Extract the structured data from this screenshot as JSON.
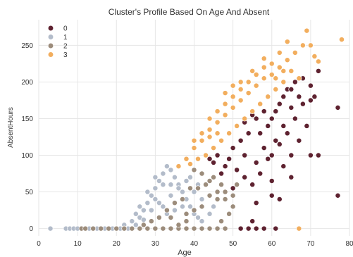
{
  "chart_data": {
    "type": "scatter",
    "title": "Cluster's Profile Based On Age And Absent",
    "xlabel": "Age",
    "ylabel": "AbsentHours",
    "xlim": [
      0,
      80
    ],
    "ylim": [
      -10,
      285
    ],
    "x_ticks": [
      "0",
      "10",
      "20",
      "30",
      "40",
      "50",
      "60",
      "70",
      "80"
    ],
    "y_ticks": [
      "0",
      "50",
      "100",
      "150",
      "200",
      "250"
    ],
    "grid": true,
    "legend": {
      "position": "top-left",
      "entries": [
        {
          "label": "0",
          "color": "#5e2230"
        },
        {
          "label": "1",
          "color": "#b3bcca"
        },
        {
          "label": "2",
          "color": "#9c8c7b"
        },
        {
          "label": "3",
          "color": "#f2ae5e"
        }
      ]
    },
    "series": [
      {
        "name": "0",
        "color": "#5e2230",
        "points": [
          [
            44,
            95
          ],
          [
            46,
            100
          ],
          [
            48,
            85
          ],
          [
            50,
            110
          ],
          [
            52,
            120
          ],
          [
            54,
            130
          ],
          [
            56,
            150
          ],
          [
            58,
            160
          ],
          [
            60,
            150
          ],
          [
            62,
            170
          ],
          [
            64,
            190
          ],
          [
            66,
            200
          ],
          [
            68,
            205
          ],
          [
            70,
            195
          ],
          [
            72,
            215
          ],
          [
            50,
            55
          ],
          [
            53,
            70
          ],
          [
            56,
            90
          ],
          [
            58,
            110
          ],
          [
            61,
            120
          ],
          [
            63,
            140
          ],
          [
            65,
            165
          ],
          [
            67,
            180
          ],
          [
            47,
            75
          ],
          [
            49,
            95
          ],
          [
            55,
            60
          ],
          [
            57,
            75
          ],
          [
            59,
            95
          ],
          [
            60,
            100
          ],
          [
            62,
            115
          ],
          [
            64,
            130
          ],
          [
            66,
            150
          ],
          [
            68,
            170
          ],
          [
            70,
            175
          ],
          [
            71,
            180
          ],
          [
            52,
            0
          ],
          [
            54,
            0
          ],
          [
            56,
            0
          ],
          [
            58,
            0
          ],
          [
            61,
            0
          ],
          [
            55,
            10
          ],
          [
            56,
            35
          ],
          [
            60,
            65
          ],
          [
            63,
            85
          ],
          [
            65,
            100
          ],
          [
            67,
            120
          ],
          [
            69,
            140
          ],
          [
            70,
            100
          ],
          [
            72,
            100
          ],
          [
            77,
            165
          ],
          [
            77,
            45
          ],
          [
            60,
            45
          ],
          [
            62,
            40
          ],
          [
            65,
            70
          ],
          [
            45,
            90
          ],
          [
            51,
            80
          ],
          [
            53,
            100
          ],
          [
            57,
            130
          ],
          [
            59,
            140
          ],
          [
            61,
            160
          ],
          [
            63,
            180
          ],
          [
            65,
            190
          ],
          [
            53,
            145
          ],
          [
            55,
            155
          ],
          [
            57,
            170
          ]
        ]
      },
      {
        "name": "1",
        "color": "#b3bcca",
        "points": [
          [
            3,
            0
          ],
          [
            7,
            0
          ],
          [
            8,
            0
          ],
          [
            9,
            0
          ],
          [
            10,
            0
          ],
          [
            13,
            0
          ],
          [
            15,
            0
          ],
          [
            17,
            0
          ],
          [
            19,
            0
          ],
          [
            21,
            0
          ],
          [
            23,
            0
          ],
          [
            25,
            5
          ],
          [
            26,
            15
          ],
          [
            27,
            25
          ],
          [
            28,
            35
          ],
          [
            29,
            45
          ],
          [
            30,
            55
          ],
          [
            31,
            65
          ],
          [
            32,
            75
          ],
          [
            33,
            85
          ],
          [
            34,
            80
          ],
          [
            35,
            70
          ],
          [
            36,
            60
          ],
          [
            37,
            50
          ],
          [
            38,
            40
          ],
          [
            39,
            30
          ],
          [
            40,
            20
          ],
          [
            41,
            15
          ],
          [
            42,
            10
          ],
          [
            24,
            10
          ],
          [
            26,
            30
          ],
          [
            28,
            50
          ],
          [
            30,
            40
          ],
          [
            32,
            30
          ],
          [
            34,
            45
          ],
          [
            36,
            55
          ],
          [
            38,
            65
          ],
          [
            40,
            50
          ],
          [
            42,
            40
          ],
          [
            25,
            20
          ],
          [
            27,
            12
          ],
          [
            29,
            25
          ],
          [
            31,
            35
          ],
          [
            33,
            20
          ],
          [
            35,
            25
          ],
          [
            37,
            30
          ],
          [
            39,
            70
          ],
          [
            41,
            60
          ],
          [
            30,
            70
          ],
          [
            32,
            60
          ],
          [
            34,
            60
          ],
          [
            36,
            85
          ],
          [
            22,
            5
          ],
          [
            20,
            0
          ],
          [
            44,
            20
          ],
          [
            45,
            30
          ]
        ]
      },
      {
        "name": "2",
        "color": "#9c8c7b",
        "points": [
          [
            11,
            0
          ],
          [
            12,
            0
          ],
          [
            14,
            0
          ],
          [
            16,
            0
          ],
          [
            18,
            0
          ],
          [
            20,
            0
          ],
          [
            22,
            0
          ],
          [
            24,
            0
          ],
          [
            26,
            0
          ],
          [
            28,
            0
          ],
          [
            30,
            0
          ],
          [
            32,
            0
          ],
          [
            34,
            0
          ],
          [
            36,
            0
          ],
          [
            38,
            0
          ],
          [
            40,
            0
          ],
          [
            42,
            0
          ],
          [
            44,
            0
          ],
          [
            46,
            0
          ],
          [
            48,
            0
          ],
          [
            36,
            5
          ],
          [
            38,
            10
          ],
          [
            40,
            25
          ],
          [
            42,
            30
          ],
          [
            44,
            45
          ],
          [
            46,
            50
          ],
          [
            48,
            40
          ],
          [
            50,
            30
          ],
          [
            49,
            20
          ],
          [
            47,
            10
          ],
          [
            41,
            55
          ],
          [
            43,
            60
          ],
          [
            45,
            70
          ],
          [
            47,
            60
          ],
          [
            37,
            40
          ],
          [
            39,
            55
          ],
          [
            35,
            35
          ],
          [
            33,
            25
          ],
          [
            31,
            15
          ],
          [
            29,
            10
          ],
          [
            27,
            5
          ],
          [
            40,
            80
          ],
          [
            42,
            75
          ],
          [
            44,
            65
          ],
          [
            46,
            40
          ],
          [
            48,
            50
          ],
          [
            50,
            45
          ],
          [
            51,
            60
          ],
          [
            34,
            15
          ],
          [
            38,
            20
          ]
        ]
      },
      {
        "name": "3",
        "color": "#f2ae5e",
        "points": [
          [
            36,
            85
          ],
          [
            38,
            95
          ],
          [
            40,
            110
          ],
          [
            42,
            120
          ],
          [
            44,
            135
          ],
          [
            46,
            145
          ],
          [
            48,
            155
          ],
          [
            50,
            165
          ],
          [
            52,
            175
          ],
          [
            54,
            185
          ],
          [
            56,
            195
          ],
          [
            58,
            205
          ],
          [
            60,
            210
          ],
          [
            62,
            220
          ],
          [
            64,
            230
          ],
          [
            66,
            240
          ],
          [
            68,
            250
          ],
          [
            69,
            270
          ],
          [
            71,
            235
          ],
          [
            72,
            228
          ],
          [
            78,
            258
          ],
          [
            67,
            205
          ],
          [
            65,
            215
          ],
          [
            63,
            200
          ],
          [
            61,
            190
          ],
          [
            59,
            180
          ],
          [
            57,
            170
          ],
          [
            55,
            160
          ],
          [
            53,
            150
          ],
          [
            51,
            140
          ],
          [
            49,
            130
          ],
          [
            47,
            120
          ],
          [
            45,
            110
          ],
          [
            43,
            100
          ],
          [
            41,
            95
          ],
          [
            39,
            88
          ],
          [
            46,
            160
          ],
          [
            48,
            170
          ],
          [
            50,
            180
          ],
          [
            52,
            190
          ],
          [
            54,
            200
          ],
          [
            56,
            210
          ],
          [
            58,
            220
          ],
          [
            42,
            130
          ],
          [
            44,
            150
          ],
          [
            40,
            120
          ],
          [
            52,
            200
          ],
          [
            55,
            215
          ],
          [
            60,
            225
          ],
          [
            62,
            240
          ],
          [
            67,
            0
          ],
          [
            64,
            255
          ],
          [
            70,
            250
          ],
          [
            58,
            232
          ],
          [
            50,
            195
          ],
          [
            48,
            185
          ],
          [
            44,
            125
          ],
          [
            46,
            130
          ],
          [
            61,
            205
          ],
          [
            63,
            215
          ]
        ]
      }
    ]
  }
}
